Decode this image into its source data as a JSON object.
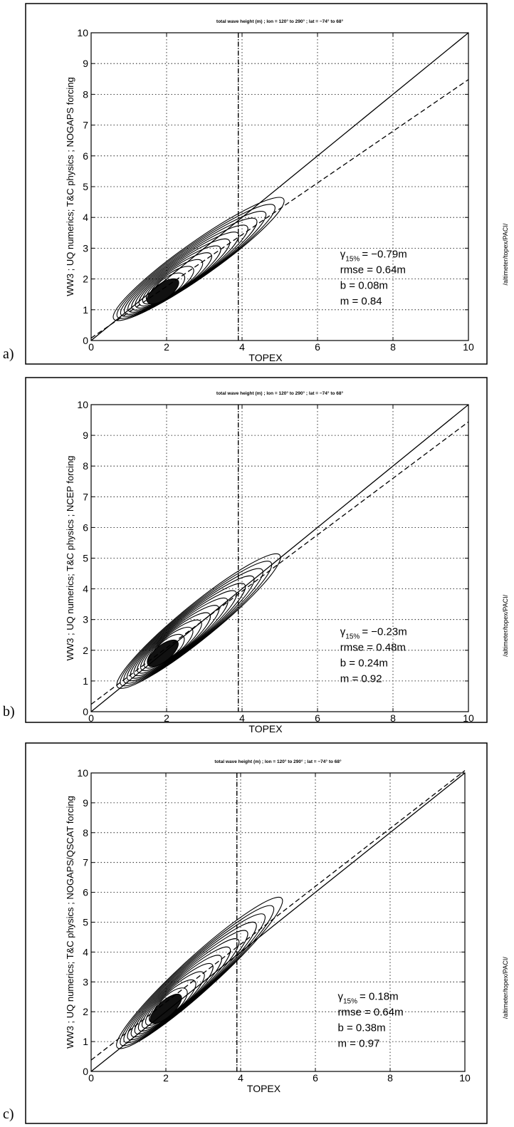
{
  "chart_data": [
    {
      "panel": "a)",
      "type": "scatter",
      "title": "total wave height (m) ; lon = 120° to 290° ; lat = −74° to 68°",
      "xlabel": "TOPEX",
      "ylabel": "WW3 ; UQ numerics; T&C physics ; NOGAPS forcing",
      "xlim": [
        0,
        10
      ],
      "ylim": [
        0,
        10
      ],
      "xticks": [
        "0",
        "2",
        "4",
        "6",
        "8",
        "10"
      ],
      "yticks": [
        "0",
        "1",
        "2",
        "3",
        "4",
        "5",
        "6",
        "7",
        "8",
        "9",
        "10"
      ],
      "grid": true,
      "vertical_line_x": 3.9,
      "series": [
        {
          "name": "",
          "style": "solid",
          "x": [
            0,
            10
          ],
          "y": [
            0,
            10
          ]
        },
        {
          "name": "",
          "style": "dashed",
          "x": [
            0,
            10
          ],
          "y": [
            0.08,
            8.48
          ]
        }
      ],
      "stats": {
        "gamma_label": "γ",
        "gamma_sub": "15%",
        "gamma_value": "= −0.79m",
        "rmse": "rmse = 0.64m",
        "b": "b = 0.08m",
        "m": "m = 0.84"
      },
      "contour_density": {
        "center": [
          1.9,
          1.6
        ],
        "outer_extent": [
          [
            0.6,
            0.7
          ],
          [
            5.1,
            4.6
          ]
        ]
      },
      "side_text": "/altimeter/topex/PACI/"
    },
    {
      "panel": "b)",
      "type": "scatter",
      "title": "total wave height (m) ; lon = 120° to 290° ; lat = −74° to 68°",
      "xlabel": "TOPEX",
      "ylabel": "WW3 ; UQ numerics; T&C physics ; NCEP forcing",
      "xlim": [
        0,
        10
      ],
      "ylim": [
        0,
        10
      ],
      "xticks": [
        "0",
        "2",
        "4",
        "6",
        "8",
        "10"
      ],
      "yticks": [
        "0",
        "1",
        "2",
        "3",
        "4",
        "5",
        "6",
        "7",
        "8",
        "9",
        "10"
      ],
      "grid": true,
      "vertical_line_x": 3.9,
      "series": [
        {
          "name": "",
          "style": "solid",
          "x": [
            0,
            10
          ],
          "y": [
            0,
            10
          ]
        },
        {
          "name": "",
          "style": "dashed",
          "x": [
            0,
            10
          ],
          "y": [
            0.24,
            9.44
          ]
        }
      ],
      "stats": {
        "gamma_label": "γ",
        "gamma_sub": "15%",
        "gamma_value": "= −0.23m",
        "rmse": "rmse = 0.48m",
        "b": "b = 0.24m",
        "m": "m = 0.92"
      },
      "contour_density": {
        "center": [
          1.9,
          1.9
        ],
        "outer_extent": [
          [
            0.7,
            0.8
          ],
          [
            5.0,
            5.1
          ]
        ]
      },
      "side_text": "/altimeter/topex/PACI/"
    },
    {
      "panel": "c)",
      "type": "scatter",
      "title": "total wave height (m) ; lon = 120° to 290° ; lat = −74° to 68°",
      "xlabel": "TOPEX",
      "ylabel": "WW3 ; UQ numerics; T&C physics ; NOGAPS/QSCAT forcing",
      "xlim": [
        0,
        10
      ],
      "ylim": [
        0,
        10
      ],
      "xticks": [
        "0",
        "2",
        "4",
        "6",
        "8",
        "10"
      ],
      "yticks": [
        "0",
        "1",
        "2",
        "3",
        "4",
        "5",
        "6",
        "7",
        "8",
        "9",
        "10"
      ],
      "grid": true,
      "vertical_line_x": 3.9,
      "series": [
        {
          "name": "",
          "style": "solid",
          "x": [
            0,
            10
          ],
          "y": [
            0,
            10
          ]
        },
        {
          "name": "",
          "style": "dashed",
          "x": [
            0,
            10
          ],
          "y": [
            0.38,
            10.08
          ]
        }
      ],
      "stats": {
        "gamma_label": "γ",
        "gamma_sub": "15%",
        "gamma_value": "= 0.18m",
        "rmse": "rmse = 0.64m",
        "b": "b = 0.38m",
        "m": "m = 0.97"
      },
      "contour_density": {
        "center": [
          2.0,
          2.1
        ],
        "outer_extent": [
          [
            0.7,
            0.8
          ],
          [
            5.1,
            5.8
          ]
        ]
      },
      "side_text": "/altimeter/topex/PACI/"
    }
  ]
}
